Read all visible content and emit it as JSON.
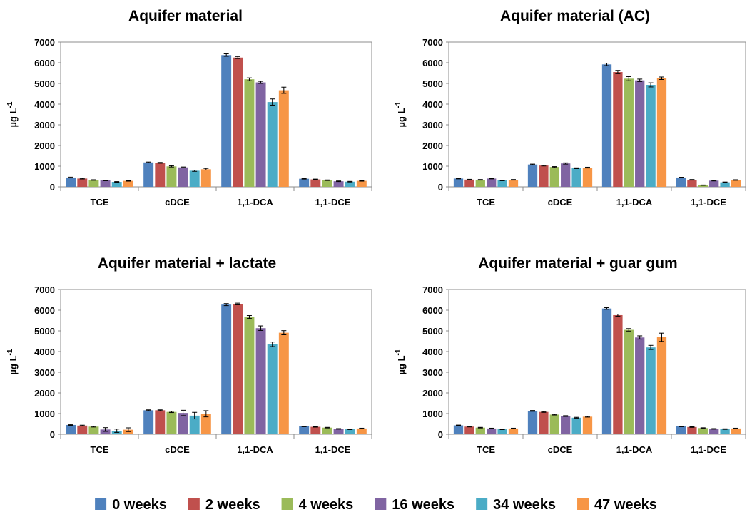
{
  "chart_data": [
    {
      "type": "bar",
      "title": "Aquifer material",
      "ylabel_main": "µg L",
      "ylabel_sup": "-1",
      "ylim": [
        0,
        7000
      ],
      "yticks": [
        0,
        1000,
        2000,
        3000,
        4000,
        5000,
        6000,
        7000
      ],
      "grid": false,
      "categories": [
        "TCE",
        "cDCE",
        "1,1-DCA",
        "1,1-DCE"
      ],
      "series": [
        {
          "name": "0 weeks",
          "values": [
            450,
            1180,
            6370,
            390
          ],
          "errors": [
            20,
            20,
            60,
            15
          ]
        },
        {
          "name": "2 weeks",
          "values": [
            400,
            1160,
            6250,
            360
          ],
          "errors": [
            20,
            20,
            50,
            15
          ]
        },
        {
          "name": "4 weeks",
          "values": [
            330,
            990,
            5200,
            320
          ],
          "errors": [
            15,
            30,
            70,
            15
          ]
        },
        {
          "name": "16 weeks",
          "values": [
            310,
            940,
            5050,
            270
          ],
          "errors": [
            15,
            20,
            50,
            15
          ]
        },
        {
          "name": "34 weeks",
          "values": [
            240,
            780,
            4100,
            250
          ],
          "errors": [
            15,
            30,
            150,
            15
          ]
        },
        {
          "name": "47 weeks",
          "values": [
            290,
            850,
            4670,
            290
          ],
          "errors": [
            15,
            40,
            150,
            15
          ]
        }
      ]
    },
    {
      "type": "bar",
      "title": "Aquifer material (AC)",
      "ylabel_main": "µg L",
      "ylabel_sup": "-1",
      "ylim": [
        0,
        7000
      ],
      "yticks": [
        0,
        1000,
        2000,
        3000,
        4000,
        5000,
        6000,
        7000
      ],
      "grid": false,
      "categories": [
        "TCE",
        "cDCE",
        "1,1-DCA",
        "1,1-DCE"
      ],
      "series": [
        {
          "name": "0 weeks",
          "values": [
            400,
            1080,
            5920,
            450
          ],
          "errors": [
            15,
            20,
            60,
            15
          ]
        },
        {
          "name": "2 weeks",
          "values": [
            350,
            1030,
            5550,
            340
          ],
          "errors": [
            15,
            20,
            80,
            15
          ]
        },
        {
          "name": "4 weeks",
          "values": [
            340,
            960,
            5230,
            80
          ],
          "errors": [
            15,
            20,
            100,
            10
          ]
        },
        {
          "name": "16 weeks",
          "values": [
            400,
            1130,
            5150,
            300
          ],
          "errors": [
            15,
            30,
            60,
            15
          ]
        },
        {
          "name": "34 weeks",
          "values": [
            310,
            900,
            4930,
            220
          ],
          "errors": [
            15,
            20,
            100,
            15
          ]
        },
        {
          "name": "47 weeks",
          "values": [
            340,
            930,
            5250,
            330
          ],
          "errors": [
            15,
            20,
            60,
            15
          ]
        }
      ]
    },
    {
      "type": "bar",
      "title": "Aquifer material + lactate",
      "ylabel_main": "µg L",
      "ylabel_sup": "-1",
      "ylim": [
        0,
        7000
      ],
      "yticks": [
        0,
        1000,
        2000,
        3000,
        4000,
        5000,
        6000,
        7000
      ],
      "grid": false,
      "categories": [
        "TCE",
        "cDCE",
        "1,1-DCA",
        "1,1-DCE"
      ],
      "series": [
        {
          "name": "0 weeks",
          "values": [
            450,
            1160,
            6270,
            380
          ],
          "errors": [
            20,
            20,
            50,
            15
          ]
        },
        {
          "name": "2 weeks",
          "values": [
            420,
            1160,
            6300,
            360
          ],
          "errors": [
            20,
            20,
            40,
            15
          ]
        },
        {
          "name": "4 weeks",
          "values": [
            370,
            1080,
            5670,
            320
          ],
          "errors": [
            20,
            30,
            70,
            15
          ]
        },
        {
          "name": "16 weeks",
          "values": [
            230,
            1030,
            5130,
            260
          ],
          "errors": [
            90,
            130,
            110,
            15
          ]
        },
        {
          "name": "34 weeks",
          "values": [
            170,
            900,
            4350,
            240
          ],
          "errors": [
            80,
            160,
            110,
            15
          ]
        },
        {
          "name": "47 weeks",
          "values": [
            220,
            990,
            4910,
            280
          ],
          "errors": [
            90,
            150,
            100,
            15
          ]
        }
      ]
    },
    {
      "type": "bar",
      "title": "Aquifer material + guar gum",
      "ylabel_main": "µg L",
      "ylabel_sup": "-1",
      "ylim": [
        0,
        7000
      ],
      "yticks": [
        0,
        1000,
        2000,
        3000,
        4000,
        5000,
        6000,
        7000
      ],
      "grid": false,
      "categories": [
        "TCE",
        "cDCE",
        "1,1-DCA",
        "1,1-DCE"
      ],
      "series": [
        {
          "name": "0 weeks",
          "values": [
            430,
            1130,
            6080,
            380
          ],
          "errors": [
            15,
            20,
            40,
            15
          ]
        },
        {
          "name": "2 weeks",
          "values": [
            370,
            1080,
            5760,
            350
          ],
          "errors": [
            15,
            20,
            50,
            15
          ]
        },
        {
          "name": "4 weeks",
          "values": [
            320,
            950,
            5050,
            300
          ],
          "errors": [
            15,
            20,
            60,
            15
          ]
        },
        {
          "name": "16 weeks",
          "values": [
            280,
            880,
            4680,
            260
          ],
          "errors": [
            15,
            20,
            80,
            15
          ]
        },
        {
          "name": "34 weeks",
          "values": [
            240,
            800,
            4200,
            250
          ],
          "errors": [
            15,
            20,
            100,
            15
          ]
        },
        {
          "name": "47 weeks",
          "values": [
            280,
            850,
            4690,
            280
          ],
          "errors": [
            15,
            20,
            200,
            15
          ]
        }
      ]
    }
  ],
  "legend": {
    "placement": "bottom",
    "items": [
      {
        "label": "0 weeks",
        "color": "#4F81BD"
      },
      {
        "label": "2 weeks",
        "color": "#C0504D"
      },
      {
        "label": "4 weeks",
        "color": "#9BBB59"
      },
      {
        "label": "16 weeks",
        "color": "#8064A2"
      },
      {
        "label": "34 weeks",
        "color": "#4BACC6"
      },
      {
        "label": "47 weeks",
        "color": "#F79646"
      }
    ]
  }
}
